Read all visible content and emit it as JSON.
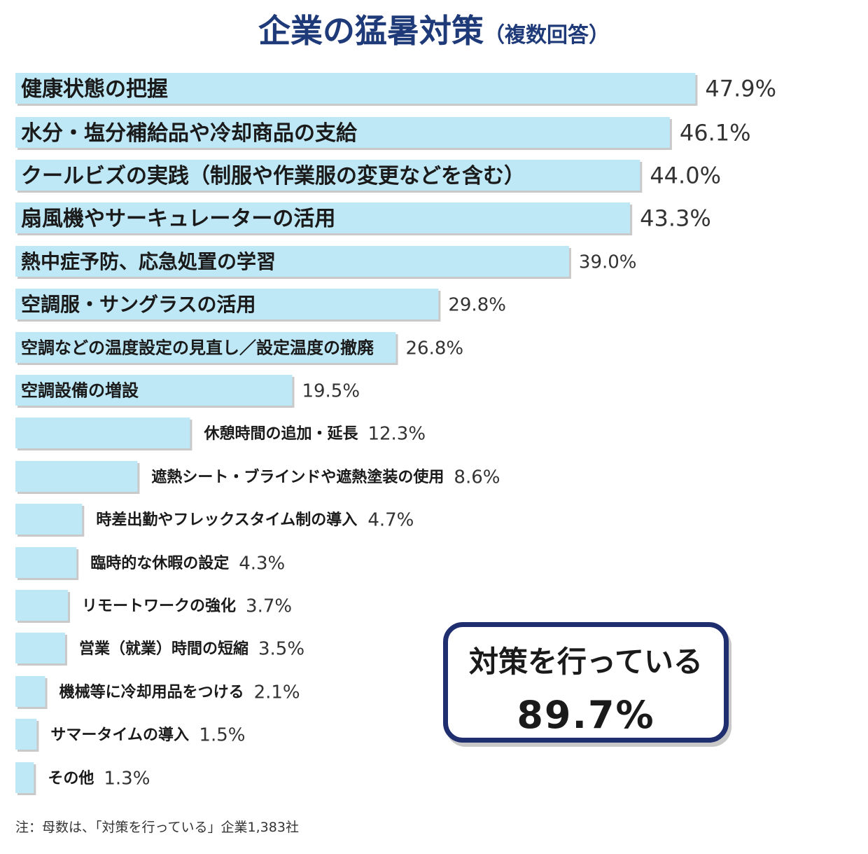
{
  "title": "企業の猛暑対策",
  "subtitle": "（複数回答）",
  "chart_data": {
    "type": "bar",
    "orientation": "horizontal",
    "categories": [
      "健康状態の把握",
      "水分・塩分補給品や冷却商品の支給",
      "クールビズの実践（制服や作業服の変更などを含む）",
      "扇風機やサーキュレーターの活用",
      "熱中症予防、応急処置の学習",
      "空調服・サングラスの活用",
      "空調などの温度設定の見直し／設定温度の撤廃",
      "空調設備の増設",
      "休憩時間の追加・延長",
      "遮熱シート・ブラインドや遮熱塗装の使用",
      "時差出勤やフレックスタイム制の導入",
      "臨時的な休暇の設定",
      "リモートワークの強化",
      "営業（就業）時間の短縮",
      "機械等に冷却用品をつける",
      "サマータイムの導入",
      "その他"
    ],
    "values": [
      47.9,
      46.1,
      44.0,
      43.3,
      39.0,
      29.8,
      26.8,
      19.5,
      12.3,
      8.6,
      4.7,
      4.3,
      3.7,
      3.5,
      2.1,
      1.5,
      1.3
    ],
    "value_labels": [
      "47.9%",
      "46.1%",
      "44.0%",
      "43.3%",
      "39.0%",
      "29.8%",
      "26.8%",
      "19.5%",
      "12.3%",
      "8.6%",
      "4.7%",
      "4.3%",
      "3.7%",
      "3.5%",
      "2.1%",
      "1.5%",
      "1.3%"
    ],
    "xlim": [
      0,
      50
    ],
    "bar_color": "#bfe8f6",
    "legend": "none",
    "grid": false
  },
  "summary": {
    "label": "対策を行っている",
    "value": "89.7%"
  },
  "note": "注：母数は、「対策を行っている」企業1,383社"
}
